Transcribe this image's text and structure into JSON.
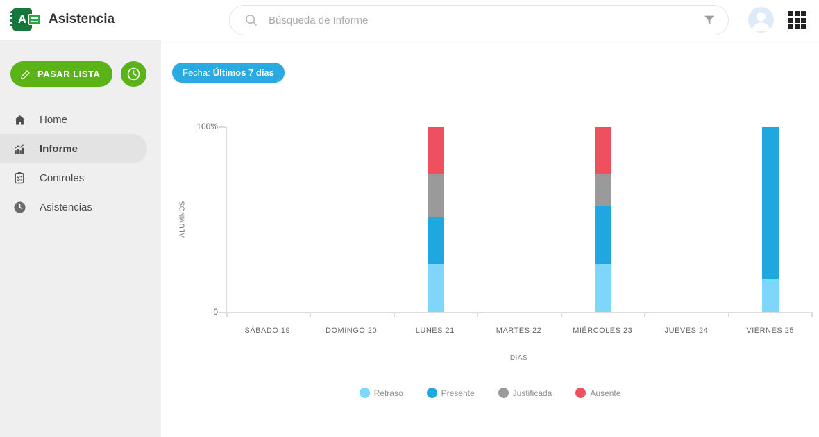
{
  "header": {
    "logo_letter": "A",
    "app_title": "Asistencia",
    "search_placeholder": "Búsqueda de Informe"
  },
  "sidebar": {
    "primary_action_label": "PASAR LISTA",
    "items": [
      {
        "label": "Home",
        "icon": "home-icon",
        "active": false
      },
      {
        "label": "Informe",
        "icon": "bar-chart-icon",
        "active": true
      },
      {
        "label": "Controles",
        "icon": "clipboard-icon",
        "active": false
      },
      {
        "label": "Asistencias",
        "icon": "clock-icon",
        "active": false
      }
    ]
  },
  "filters": {
    "date_chip_prefix": "Fecha:",
    "date_chip_value": "Últimos 7 días"
  },
  "colors": {
    "accent_green": "#5ab317",
    "accent_blue": "#29abe2",
    "retraso": "#7fd6fb",
    "presente": "#1fa7e0",
    "justificada": "#9a9a9a",
    "ausente": "#ef5060",
    "axis": "#dcdcdc"
  },
  "chart_data": {
    "type": "bar",
    "stacked": true,
    "unit": "%",
    "title": "",
    "xlabel": "DIAS",
    "ylabel": "ALUMNOS",
    "ylim": [
      0,
      100
    ],
    "y_ticks": [
      "100%",
      "0"
    ],
    "grid": false,
    "legend_position": "bottom",
    "categories": [
      "SÁBADO 19",
      "DOMINGO 20",
      "LUNES 21",
      "MARTES 22",
      "MIÉRCOLES 23",
      "JUEVES 24",
      "VIERNES 25"
    ],
    "series": [
      {
        "name": "Retraso",
        "color": "#7fd6fb",
        "values": [
          0,
          0,
          26,
          0,
          26,
          0,
          18
        ]
      },
      {
        "name": "Presente",
        "color": "#1fa7e0",
        "values": [
          0,
          0,
          25,
          0,
          31,
          0,
          82
        ]
      },
      {
        "name": "Justificada",
        "color": "#9a9a9a",
        "values": [
          0,
          0,
          24,
          0,
          18,
          0,
          0
        ]
      },
      {
        "name": "Ausente",
        "color": "#ef5060",
        "values": [
          0,
          0,
          25,
          0,
          25,
          0,
          0
        ]
      }
    ]
  }
}
